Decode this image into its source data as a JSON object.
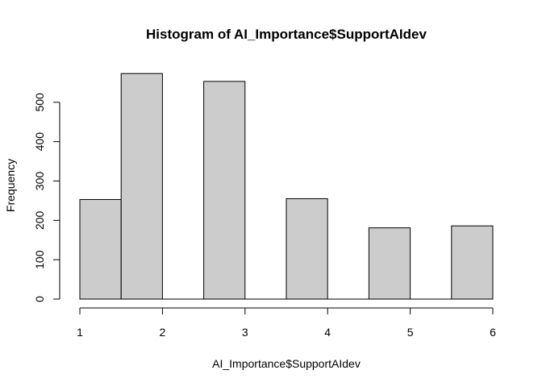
{
  "chart_data": {
    "type": "bar",
    "title": "Histogram of AI_Importance$SupportAIdev",
    "xlabel": "AI_Importance$SupportAIdev",
    "ylabel": "Frequency",
    "bin_edges": [
      1,
      1.5,
      2,
      2.5,
      3,
      3.5,
      4,
      4.5,
      5,
      5.5,
      6
    ],
    "values": [
      253,
      573,
      0,
      553,
      0,
      255,
      0,
      181,
      0,
      186
    ],
    "xlim": [
      1,
      6
    ],
    "ylim": [
      0,
      600
    ],
    "x_ticks": [
      1,
      2,
      3,
      4,
      5,
      6
    ],
    "y_ticks": [
      0,
      100,
      200,
      300,
      400,
      500
    ],
    "x_tick_labels": [
      "1",
      "2",
      "3",
      "4",
      "5",
      "6"
    ],
    "y_tick_labels": [
      "0",
      "100",
      "200",
      "300",
      "400",
      "500"
    ],
    "grid": false,
    "bar_fill": "#cccccc",
    "bar_stroke": "#000000"
  }
}
